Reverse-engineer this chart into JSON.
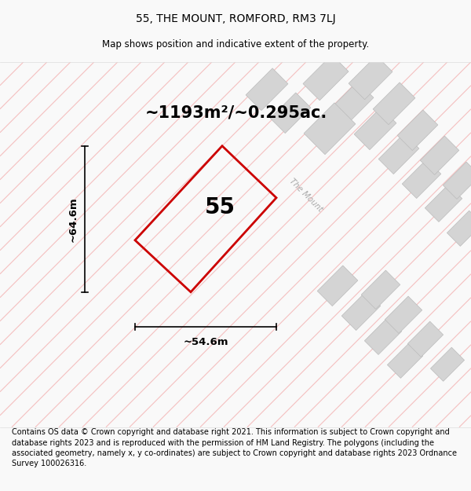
{
  "title": "55, THE MOUNT, ROMFORD, RM3 7LJ",
  "subtitle": "Map shows position and indicative extent of the property.",
  "area_text": "~1193m²/~0.295ac.",
  "label_55": "55",
  "dim_width": "~54.6m",
  "dim_height": "~64.6m",
  "road_label": "The Mount",
  "footer": "Contains OS data © Crown copyright and database right 2021. This information is subject to Crown copyright and database rights 2023 and is reproduced with the permission of HM Land Registry. The polygons (including the associated geometry, namely x, y co-ordinates) are subject to Crown copyright and database rights 2023 Ordnance Survey 100026316.",
  "bg_color": "#f9f9f9",
  "map_bg": "#ffffff",
  "plot_color_edge": "#cc0000",
  "grid_line_color": "#f5c0c0",
  "building_fill": "#d4d4d4",
  "building_edge": "#bbbbbb",
  "title_fontsize": 10,
  "subtitle_fontsize": 8.5,
  "area_fontsize": 15,
  "label_fontsize": 20,
  "dim_fontsize": 9.5,
  "footer_fontsize": 7.0,
  "road_label_fontsize": 7.5
}
